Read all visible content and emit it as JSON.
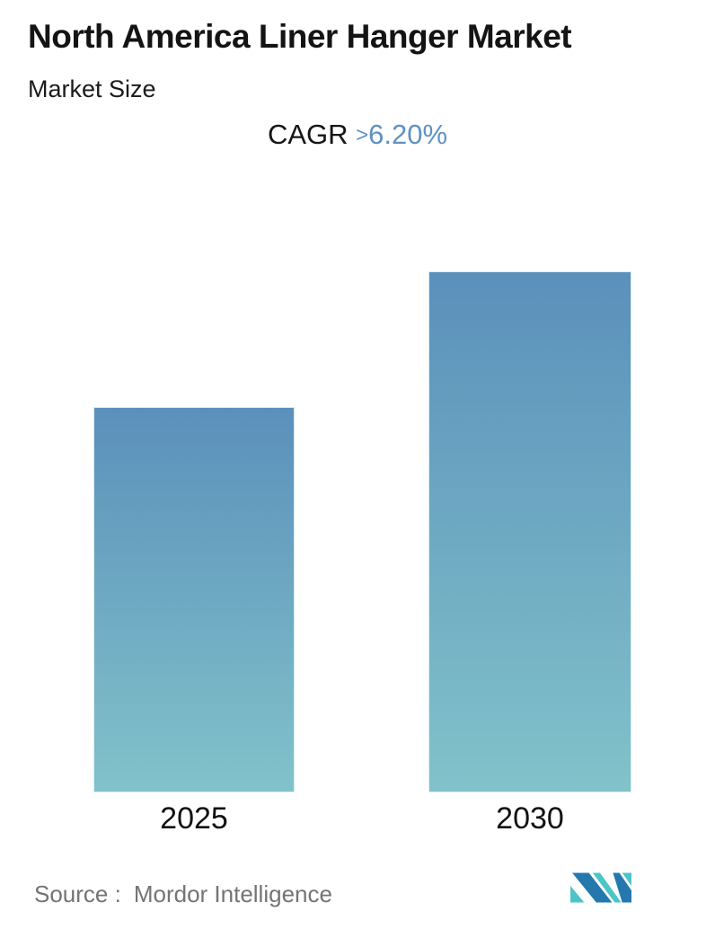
{
  "header": {
    "title": "North America Liner Hanger Market",
    "subtitle": "Market Size",
    "cagr_label": "CAGR",
    "cagr_gt": ">",
    "cagr_value": "6.20%",
    "cagr_value_color": "#5e92c2"
  },
  "chart_data": {
    "type": "bar",
    "title": "North America Liner Hanger Market",
    "subtitle": "Market Size",
    "annotation": "CAGR >6.20%",
    "categories": [
      "2025",
      "2030"
    ],
    "values": [
      1.0,
      1.352
    ],
    "values_unit": "relative market size (no value axis shown)",
    "series_name": "Market Size",
    "grid": false,
    "legend": false,
    "bar_gradient_top": "#5b90bb",
    "bar_gradient_bottom": "#81c2ca"
  },
  "footer": {
    "source_label": "Source :",
    "source_value": "Mordor Intelligence",
    "logo": "mordor-intelligence-logo",
    "logo_blue": "#2478ad",
    "logo_teal": "#4cc5c9"
  }
}
